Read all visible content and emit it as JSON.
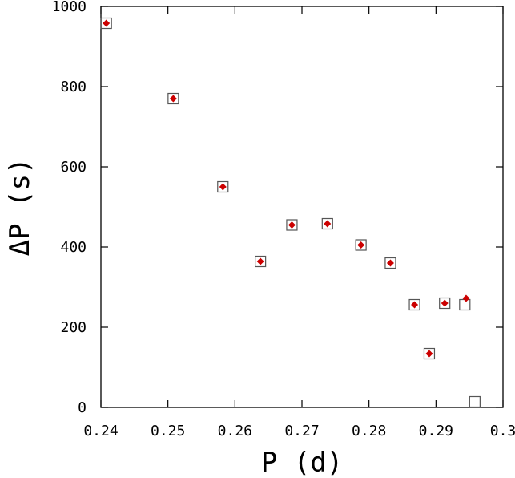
{
  "chart_data": {
    "type": "scatter",
    "title": "",
    "xlabel": "P (d)",
    "ylabel": "ΔP (s)",
    "xlim": [
      0.24,
      0.3
    ],
    "ylim": [
      0,
      1000
    ],
    "x_ticks": [
      0.24,
      0.25,
      0.26,
      0.27,
      0.28,
      0.29,
      0.3
    ],
    "x_tick_labels": [
      "0.24",
      "0.25",
      "0.26",
      "0.27",
      "0.28",
      "0.29",
      "0.3"
    ],
    "y_ticks": [
      0,
      200,
      400,
      600,
      800,
      1000
    ],
    "y_tick_labels": [
      "0",
      "200",
      "400",
      "600",
      "800",
      "1000"
    ],
    "grid": false,
    "series": [
      {
        "marker": "open-square",
        "color": "#555555",
        "x": [
          0.2408,
          0.2508,
          0.2582,
          0.2638,
          0.2685,
          0.2738,
          0.2788,
          0.2832,
          0.2868,
          0.289,
          0.2913,
          0.2943,
          0.2958
        ],
        "y": [
          958,
          770,
          550,
          364,
          455,
          458,
          405,
          360,
          256,
          134,
          260,
          256,
          14
        ]
      },
      {
        "marker": "filled-diamond",
        "color": "#cc0000",
        "x": [
          0.2408,
          0.2508,
          0.2582,
          0.2638,
          0.2685,
          0.2738,
          0.2788,
          0.2832,
          0.2868,
          0.289,
          0.2913,
          0.2945
        ],
        "y": [
          958,
          770,
          550,
          364,
          455,
          458,
          405,
          360,
          256,
          134,
          260,
          272
        ]
      }
    ]
  }
}
